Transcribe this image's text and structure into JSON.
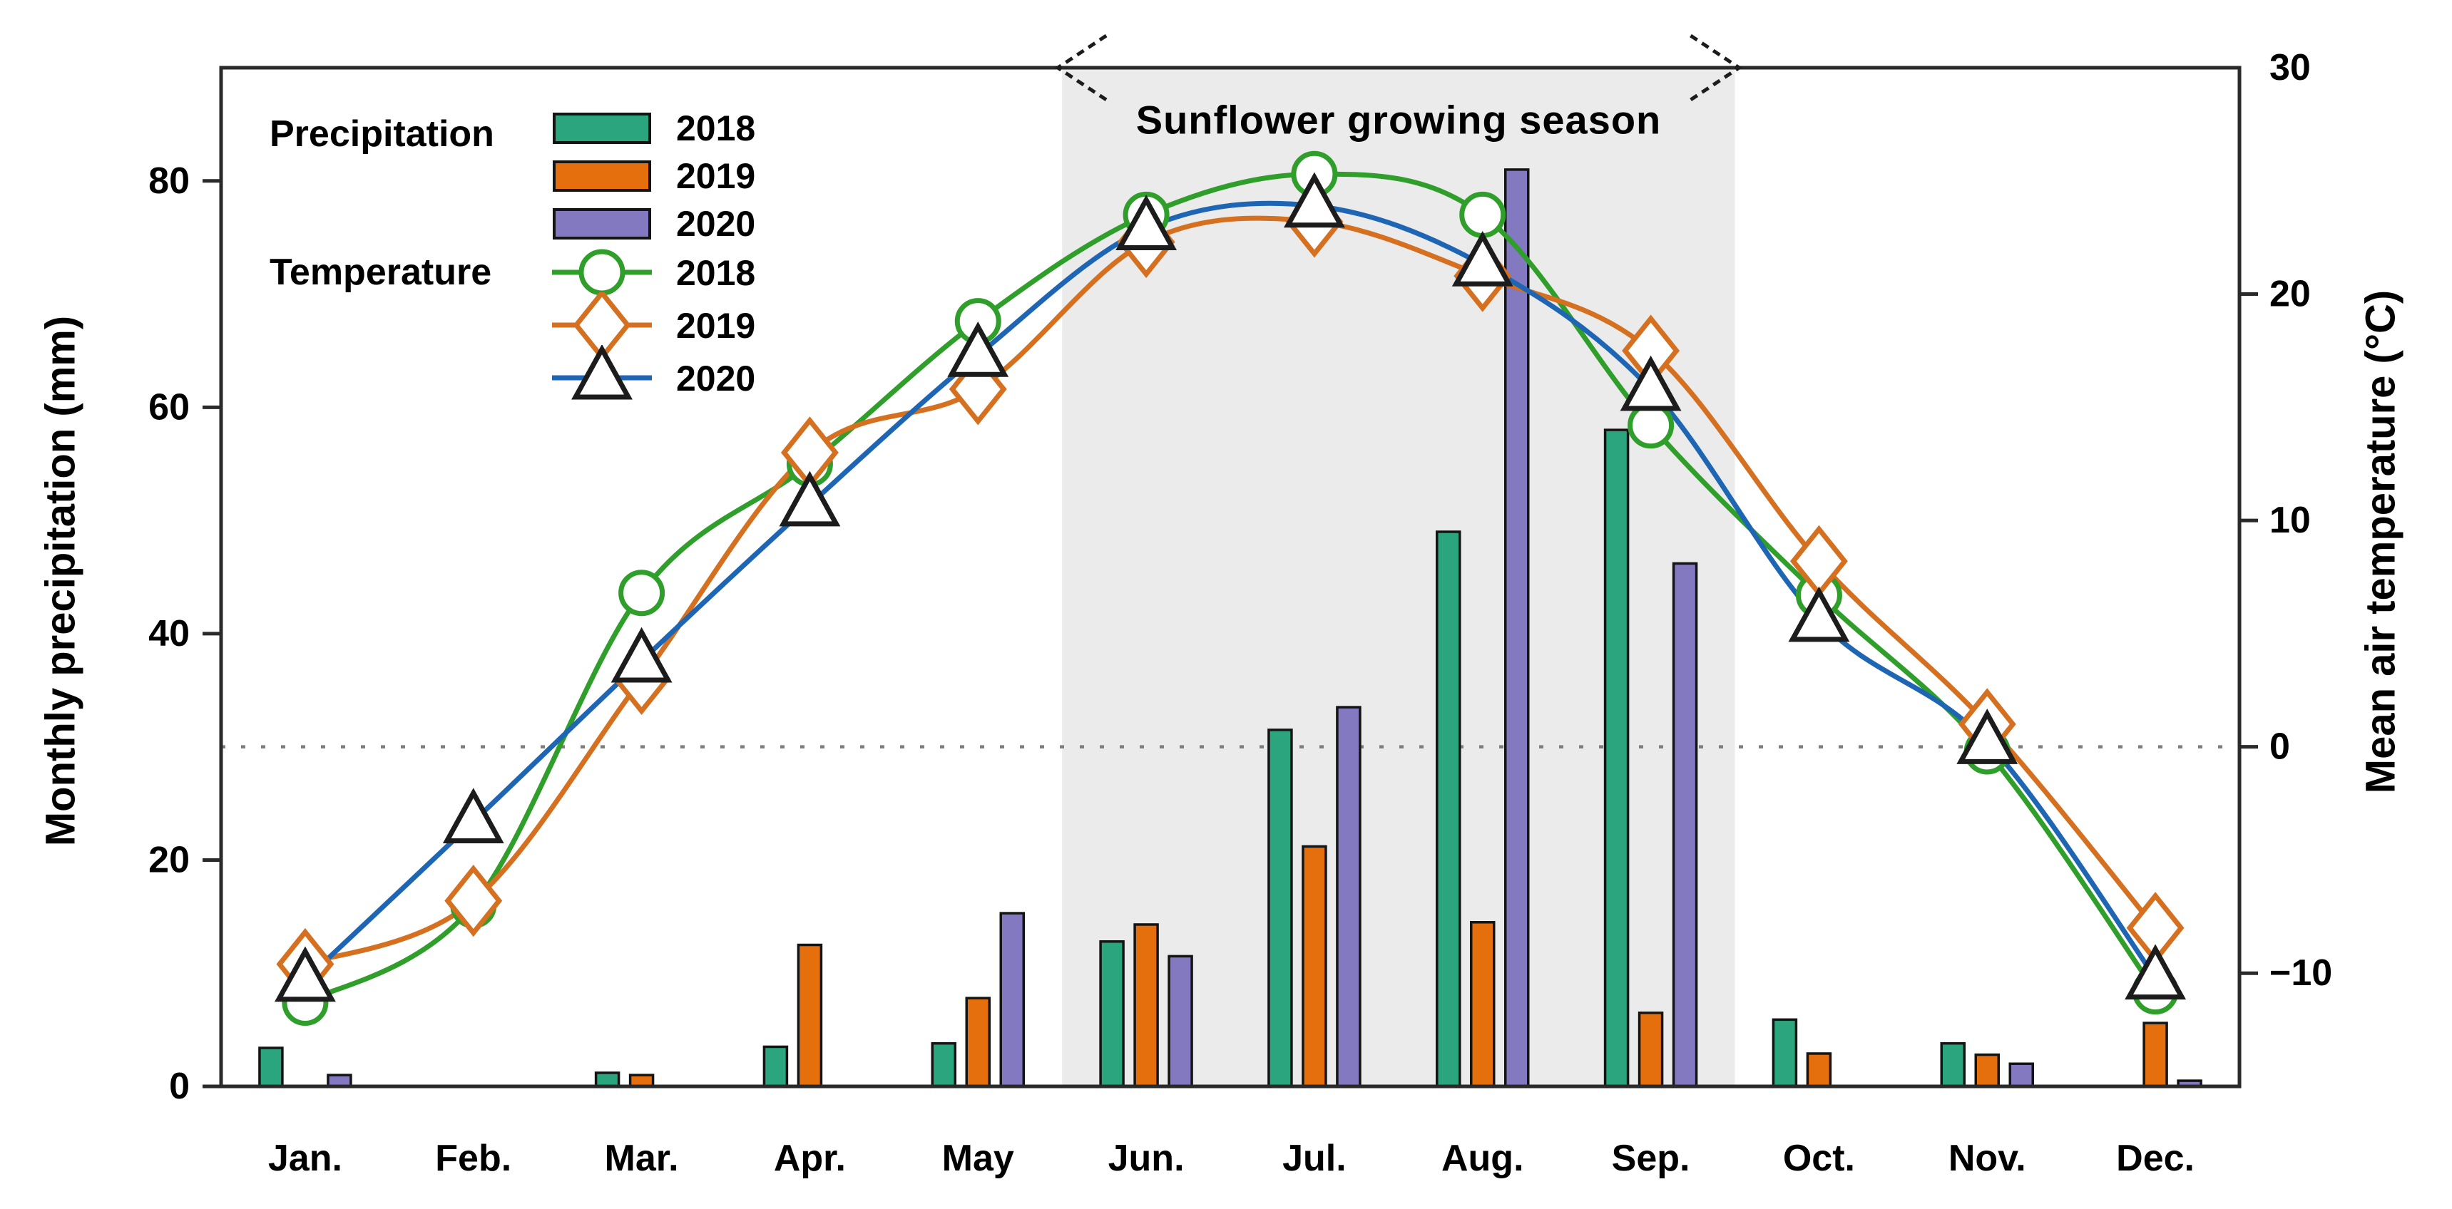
{
  "chart_data": {
    "type": "combo: grouped bars (precipitation) + smoothed marker lines (temperature)",
    "categories": [
      "Jan.",
      "Feb.",
      "Mar.",
      "Apr.",
      "May",
      "Jun.",
      "Jul.",
      "Aug.",
      "Sep.",
      "Oct.",
      "Nov.",
      "Dec."
    ],
    "left_axis": {
      "label": "Monthly precipitation (mm)",
      "unit": "mm",
      "ticks": [
        0,
        20,
        40,
        60,
        80
      ],
      "range": [
        0,
        90
      ],
      "grid": "off"
    },
    "right_axis": {
      "label": "Mean air temperature (°C)",
      "unit": "°C",
      "ticks": [
        -10,
        0,
        10,
        20,
        30
      ],
      "range": [
        -15,
        30
      ],
      "zero_reference_line": "dotted gray line at 0 °C"
    },
    "season_band": {
      "label": "Sunflower growing season",
      "start": "Jun.",
      "end": "Sep.",
      "start_index": 5,
      "end_index": 8,
      "fill": "#ebebeb"
    },
    "legend": {
      "position": "top-left inside plot",
      "precip_group_label": "Precipitation",
      "temp_group_label": "Temperature"
    },
    "precipitation_series": [
      {
        "name": "2018",
        "color": "#2aa57d",
        "values": [
          3.4,
          0,
          1.2,
          3.5,
          3.8,
          12.8,
          31.5,
          49,
          58,
          5.9,
          3.8,
          0
        ]
      },
      {
        "name": "2019",
        "color": "#e56f0d",
        "values": [
          0,
          0,
          1.0,
          12.5,
          7.8,
          14.3,
          21.2,
          14.5,
          6.5,
          2.9,
          2.8,
          5.6
        ]
      },
      {
        "name": "2020",
        "color": "#8279c0",
        "values": [
          1.0,
          0,
          0,
          0,
          15.3,
          11.5,
          33.5,
          81,
          46.2,
          0,
          2.0,
          0.5
        ]
      }
    ],
    "temperature_series": [
      {
        "name": "2018",
        "line_color": "#2f9e2a",
        "marker": "circle",
        "marker_color": "#2f9e2a",
        "values": [
          -11.3,
          -7.0,
          6.8,
          12.5,
          18.8,
          23.5,
          25.3,
          23.5,
          14.2,
          6.7,
          -0.2,
          -10.8
        ]
      },
      {
        "name": "2019",
        "line_color": "#d4701f",
        "marker": "diamond",
        "marker_color": "#d4701f",
        "values": [
          -9.6,
          -6.8,
          3.0,
          13.0,
          15.8,
          22.3,
          23.2,
          20.8,
          17.5,
          8.2,
          1.0,
          -8.0
        ]
      },
      {
        "name": "2020",
        "line_color": "#1e66b3",
        "marker": "triangle",
        "marker_color": "#1c1c1c",
        "values": [
          -10.3,
          -3.3,
          3.8,
          10.7,
          17.3,
          22.9,
          23.9,
          21.3,
          15.8,
          5.6,
          0.2,
          -10.2
        ]
      }
    ],
    "style": {
      "frame_color": "#2a2a2a",
      "bar_outline": "#141414",
      "dotted_line_color": "#7d7d7d",
      "text_color": "#000000",
      "background": "#ffffff"
    }
  }
}
